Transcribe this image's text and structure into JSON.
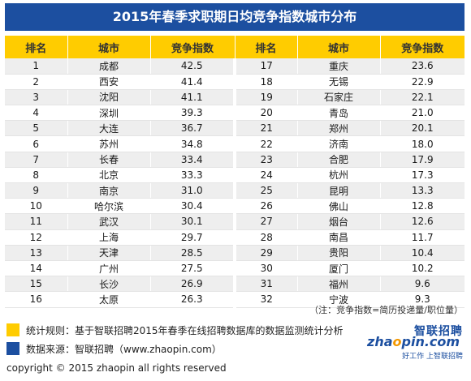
{
  "title": "2015年春季求职期日均竞争指数城市分布",
  "headers": [
    "排名",
    "城市",
    "竞争指数",
    "排名",
    "城市",
    "竞争指数"
  ],
  "rows": [
    [
      "1",
      "成都",
      "42.5",
      "17",
      "重庆",
      "23.6"
    ],
    [
      "2",
      "西安",
      "41.4",
      "18",
      "无锡",
      "22.9"
    ],
    [
      "3",
      "沈阳",
      "41.1",
      "19",
      "石家庄",
      "22.1"
    ],
    [
      "4",
      "深圳",
      "39.3",
      "20",
      "青岛",
      "21.0"
    ],
    [
      "5",
      "大连",
      "36.7",
      "21",
      "郑州",
      "20.1"
    ],
    [
      "6",
      "苏州",
      "34.8",
      "22",
      "济南",
      "18.0"
    ],
    [
      "7",
      "长春",
      "33.4",
      "23",
      "合肥",
      "17.9"
    ],
    [
      "8",
      "北京",
      "33.3",
      "24",
      "杭州",
      "17.3"
    ],
    [
      "9",
      "南京",
      "31.0",
      "25",
      "昆明",
      "13.3"
    ],
    [
      "10",
      "哈尔滨",
      "30.4",
      "26",
      "佛山",
      "12.8"
    ],
    [
      "11",
      "武汉",
      "30.1",
      "27",
      "烟台",
      "12.6"
    ],
    [
      "12",
      "上海",
      "29.7",
      "28",
      "南昌",
      "11.7"
    ],
    [
      "13",
      "天津",
      "28.5",
      "29",
      "贵阳",
      "10.4"
    ],
    [
      "14",
      "广州",
      "27.5",
      "30",
      "厦门",
      "10.2"
    ],
    [
      "15",
      "长沙",
      "26.9",
      "31",
      "福州",
      "9.6"
    ],
    [
      "16",
      "太原",
      "26.3",
      "32",
      "宁波",
      "9.3"
    ]
  ],
  "note": "（注：竞争指数=简历投递量/职位量）",
  "legend": {
    "rule": "统计规则：基于智联招聘2015年春季在线招聘数据库的数据监测统计分析",
    "source": "数据来源：智联招聘（www.zhaopin.com）"
  },
  "copyright": "copyright ©  2015 zhaopin all rights reserved",
  "brand": {
    "name_cn": "智联招聘",
    "name_en_prefix": "zha",
    "name_en_o": "o",
    "name_en_suffix": "pin.com",
    "tagline": "好工作  上智联招聘"
  },
  "colors": {
    "title_bg": "#1c4fa0",
    "header_bg": "#ffcc00",
    "row_stripe": "#eeeeee",
    "brand_blue": "#1c4fa0",
    "brand_orange": "#f39800"
  }
}
